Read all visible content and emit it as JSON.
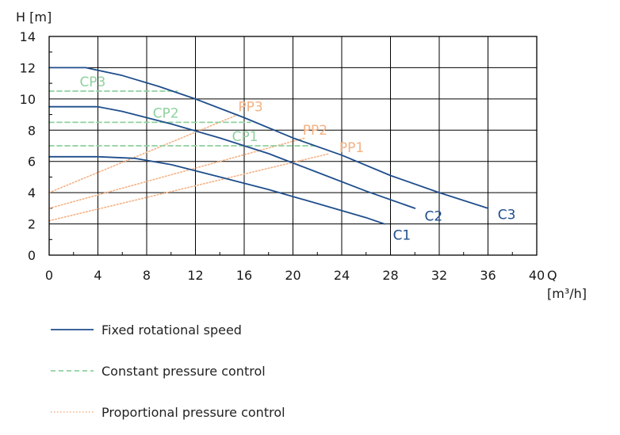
{
  "chart_data": {
    "type": "line",
    "title": "",
    "xlabel": "Q",
    "xunit": "[m³/h]",
    "ylabel": "H [m]",
    "xlim": [
      0,
      40
    ],
    "ylim": [
      0,
      14
    ],
    "xticks": [
      "0",
      "4",
      "8",
      "12",
      "16",
      "20",
      "24",
      "28",
      "32",
      "36",
      "40"
    ],
    "yticks": [
      "0",
      "2",
      "4",
      "6",
      "8",
      "10",
      "12",
      "14"
    ],
    "grid": true,
    "legend_position": "bottom",
    "colors": {
      "fixed": "#1f4e8c",
      "constant": "#8fd19e",
      "proportional": "#f4b183"
    },
    "series": [
      {
        "name": "C1",
        "group": "fixed",
        "x": [
          0,
          4,
          7,
          10,
          14,
          18,
          22,
          26,
          27.5
        ],
        "y": [
          6.3,
          6.3,
          6.2,
          5.8,
          5.0,
          4.2,
          3.3,
          2.4,
          2.0
        ]
      },
      {
        "name": "C2",
        "group": "fixed",
        "x": [
          0,
          4,
          6,
          10,
          14,
          18,
          22,
          26,
          30
        ],
        "y": [
          9.5,
          9.5,
          9.2,
          8.4,
          7.5,
          6.5,
          5.3,
          4.1,
          3.0
        ]
      },
      {
        "name": "C3",
        "group": "fixed",
        "x": [
          0,
          3,
          6,
          9,
          12,
          16,
          20,
          24,
          28,
          32,
          36
        ],
        "y": [
          12.0,
          12.0,
          11.5,
          10.8,
          10.0,
          8.8,
          7.5,
          6.4,
          5.1,
          4.0,
          3.0
        ]
      },
      {
        "name": "CP3",
        "group": "constant",
        "x": [
          0,
          10.5
        ],
        "y": [
          10.5,
          10.5
        ]
      },
      {
        "name": "CP2",
        "group": "constant",
        "x": [
          0,
          16.5
        ],
        "y": [
          8.5,
          8.5
        ]
      },
      {
        "name": "CP1",
        "group": "constant",
        "x": [
          0,
          22
        ],
        "y": [
          7.0,
          7.0
        ]
      },
      {
        "name": "PP3",
        "group": "proportional",
        "x": [
          0,
          15.5
        ],
        "y": [
          4.0,
          9.0
        ]
      },
      {
        "name": "PP2",
        "group": "proportional",
        "x": [
          0,
          21
        ],
        "y": [
          3.0,
          7.5
        ]
      },
      {
        "name": "PP1",
        "group": "proportional",
        "x": [
          0,
          23
        ],
        "y": [
          2.2,
          6.5
        ]
      }
    ],
    "labels": [
      {
        "text": "C1",
        "group": "fixed",
        "x": 28.2,
        "y": 1.0
      },
      {
        "text": "C2",
        "group": "fixed",
        "x": 30.8,
        "y": 2.2
      },
      {
        "text": "C3",
        "group": "fixed",
        "x": 36.8,
        "y": 2.3
      },
      {
        "text": "CP3",
        "group": "constant",
        "x": 2.5,
        "y": 10.8
      },
      {
        "text": "CP2",
        "group": "constant",
        "x": 8.5,
        "y": 8.8
      },
      {
        "text": "CP1",
        "group": "constant",
        "x": 15.0,
        "y": 7.3
      },
      {
        "text": "PP3",
        "group": "proportional",
        "x": 15.5,
        "y": 9.2
      },
      {
        "text": "PP2",
        "group": "proportional",
        "x": 20.8,
        "y": 7.7
      },
      {
        "text": "PP1",
        "group": "proportional",
        "x": 23.8,
        "y": 6.6
      }
    ],
    "legend": [
      {
        "label": "Fixed rotational speed",
        "group": "fixed"
      },
      {
        "label": "Constant pressure control",
        "group": "constant"
      },
      {
        "label": "Proportional pressure control",
        "group": "proportional"
      }
    ]
  }
}
